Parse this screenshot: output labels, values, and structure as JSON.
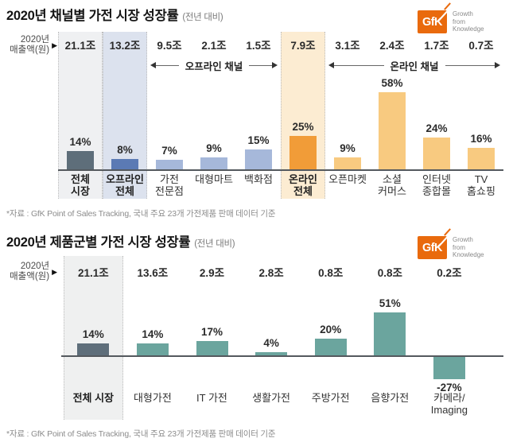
{
  "logo": {
    "text": "GfK",
    "tagline": "Growth\nfrom\nKnowledge",
    "brand_color": "#E96A0D",
    "tagline_color": "#8A8A8A"
  },
  "palette": {
    "total_bar": "#5E6E7A",
    "offline_total_bar": "#5B7AB4",
    "offline_bar": "#A6B8DA",
    "online_total_bar": "#F19C38",
    "online_bar": "#F8CA80",
    "product_bar": "#6BA59E",
    "highlight_gray_bg": "#EFF0F2",
    "highlight_blue_bg": "#DCE2EE",
    "highlight_orange_bg": "#FCECD2",
    "axis": "#54595E"
  },
  "charts": [
    {
      "title": "2020년 채널별 가전 시장 성장률",
      "subtitle": "(전년 대비)",
      "axis_label": "2020년\n매출액(원)",
      "axis_arrow": "▶",
      "footnote": "*자료 : GfK Point of Sales Tracking, 국내 주요 23개 가전제품 판매 데이터 기준",
      "chart_data": {
        "type": "bar",
        "title": "2020년 채널별 가전 시장 성장률 (전년 대비)",
        "revenue_unit": "조 (원, 2020년 매출액)",
        "growth_unit": "% (전년 대비 성장률)",
        "categories": [
          "전체 시장",
          "오프라인 전체",
          "가전 전문점",
          "대형마트",
          "백화점",
          "온라인 전체",
          "오픈마켓",
          "소셜 커머스",
          "인터넷 종합몰",
          "TV 홈쇼핑"
        ],
        "category_lines": [
          "전체\n시장",
          "오프라인\n전체",
          "가전\n전문점",
          "대형마트",
          "백화점",
          "온라인\n전체",
          "오픈마켓",
          "소셜\n커머스",
          "인터넷\n종합몰",
          "TV\n홈쇼핑"
        ],
        "revenue_labels": [
          "21.1조",
          "13.2조",
          "9.5조",
          "2.1조",
          "1.5조",
          "7.9조",
          "3.1조",
          "2.4조",
          "1.7조",
          "0.7조"
        ],
        "revenue_trillion_krw": [
          21.1,
          13.2,
          9.5,
          2.1,
          1.5,
          7.9,
          3.1,
          2.4,
          1.7,
          0.7
        ],
        "growth_labels": [
          "14%",
          "8%",
          "7%",
          "9%",
          "15%",
          "25%",
          "9%",
          "58%",
          "24%",
          "16%"
        ],
        "growth_pct": [
          14,
          8,
          7,
          9,
          15,
          25,
          9,
          58,
          24,
          16
        ],
        "bar_colors": [
          "#5E6E7A",
          "#5B7AB4",
          "#A6B8DA",
          "#A6B8DA",
          "#A6B8DA",
          "#F19C38",
          "#F8CA80",
          "#F8CA80",
          "#F8CA80",
          "#F8CA80"
        ],
        "bold_categories": [
          0,
          1,
          5
        ],
        "highlights": [
          {
            "index": 0,
            "bg": "#EFF0F2"
          },
          {
            "index": 1,
            "bg": "#DCE2EE"
          },
          {
            "index": 5,
            "bg": "#FCECD2"
          }
        ],
        "groups": [
          {
            "label": "오프라인 채널",
            "from": 2,
            "to": 4
          },
          {
            "label": "온라인 채널",
            "from": 6,
            "to": 9
          }
        ]
      }
    },
    {
      "title": "2020년 제품군별 가전 시장 성장률",
      "subtitle": "(전년 대비)",
      "axis_label": "2020년\n매출액(원)",
      "axis_arrow": "▶",
      "footnote": "*자료 : GfK Point of Sales Tracking, 국내 주요 23개 가전제품 판매 데이터 기준",
      "chart_data": {
        "type": "bar",
        "title": "2020년 제품군별 가전 시장 성장률 (전년 대비)",
        "revenue_unit": "조 (원, 2020년 매출액)",
        "growth_unit": "% (전년 대비 성장률)",
        "categories": [
          "전체 시장",
          "대형가전",
          "IT 가전",
          "생활가전",
          "주방가전",
          "음향가전",
          "카메라/Imaging"
        ],
        "category_lines": [
          "전체 시장",
          "대형가전",
          "IT 가전",
          "생활가전",
          "주방가전",
          "음향가전",
          "카메라/\nImaging"
        ],
        "revenue_labels": [
          "21.1조",
          "13.6조",
          "2.9조",
          "2.8조",
          "0.8조",
          "0.8조",
          "0.2조"
        ],
        "revenue_trillion_krw": [
          21.1,
          13.6,
          2.9,
          2.8,
          0.8,
          0.8,
          0.2
        ],
        "growth_labels": [
          "14%",
          "14%",
          "17%",
          "4%",
          "20%",
          "51%",
          "-27%"
        ],
        "growth_pct": [
          14,
          14,
          17,
          4,
          20,
          51,
          -27
        ],
        "bar_colors": [
          "#5E6E7A",
          "#6BA59E",
          "#6BA59E",
          "#6BA59E",
          "#6BA59E",
          "#6BA59E",
          "#6BA59E"
        ],
        "bold_categories": [
          0
        ],
        "highlights": [
          {
            "index": 0,
            "bg": "#EFF0F0"
          }
        ],
        "groups": []
      }
    }
  ]
}
